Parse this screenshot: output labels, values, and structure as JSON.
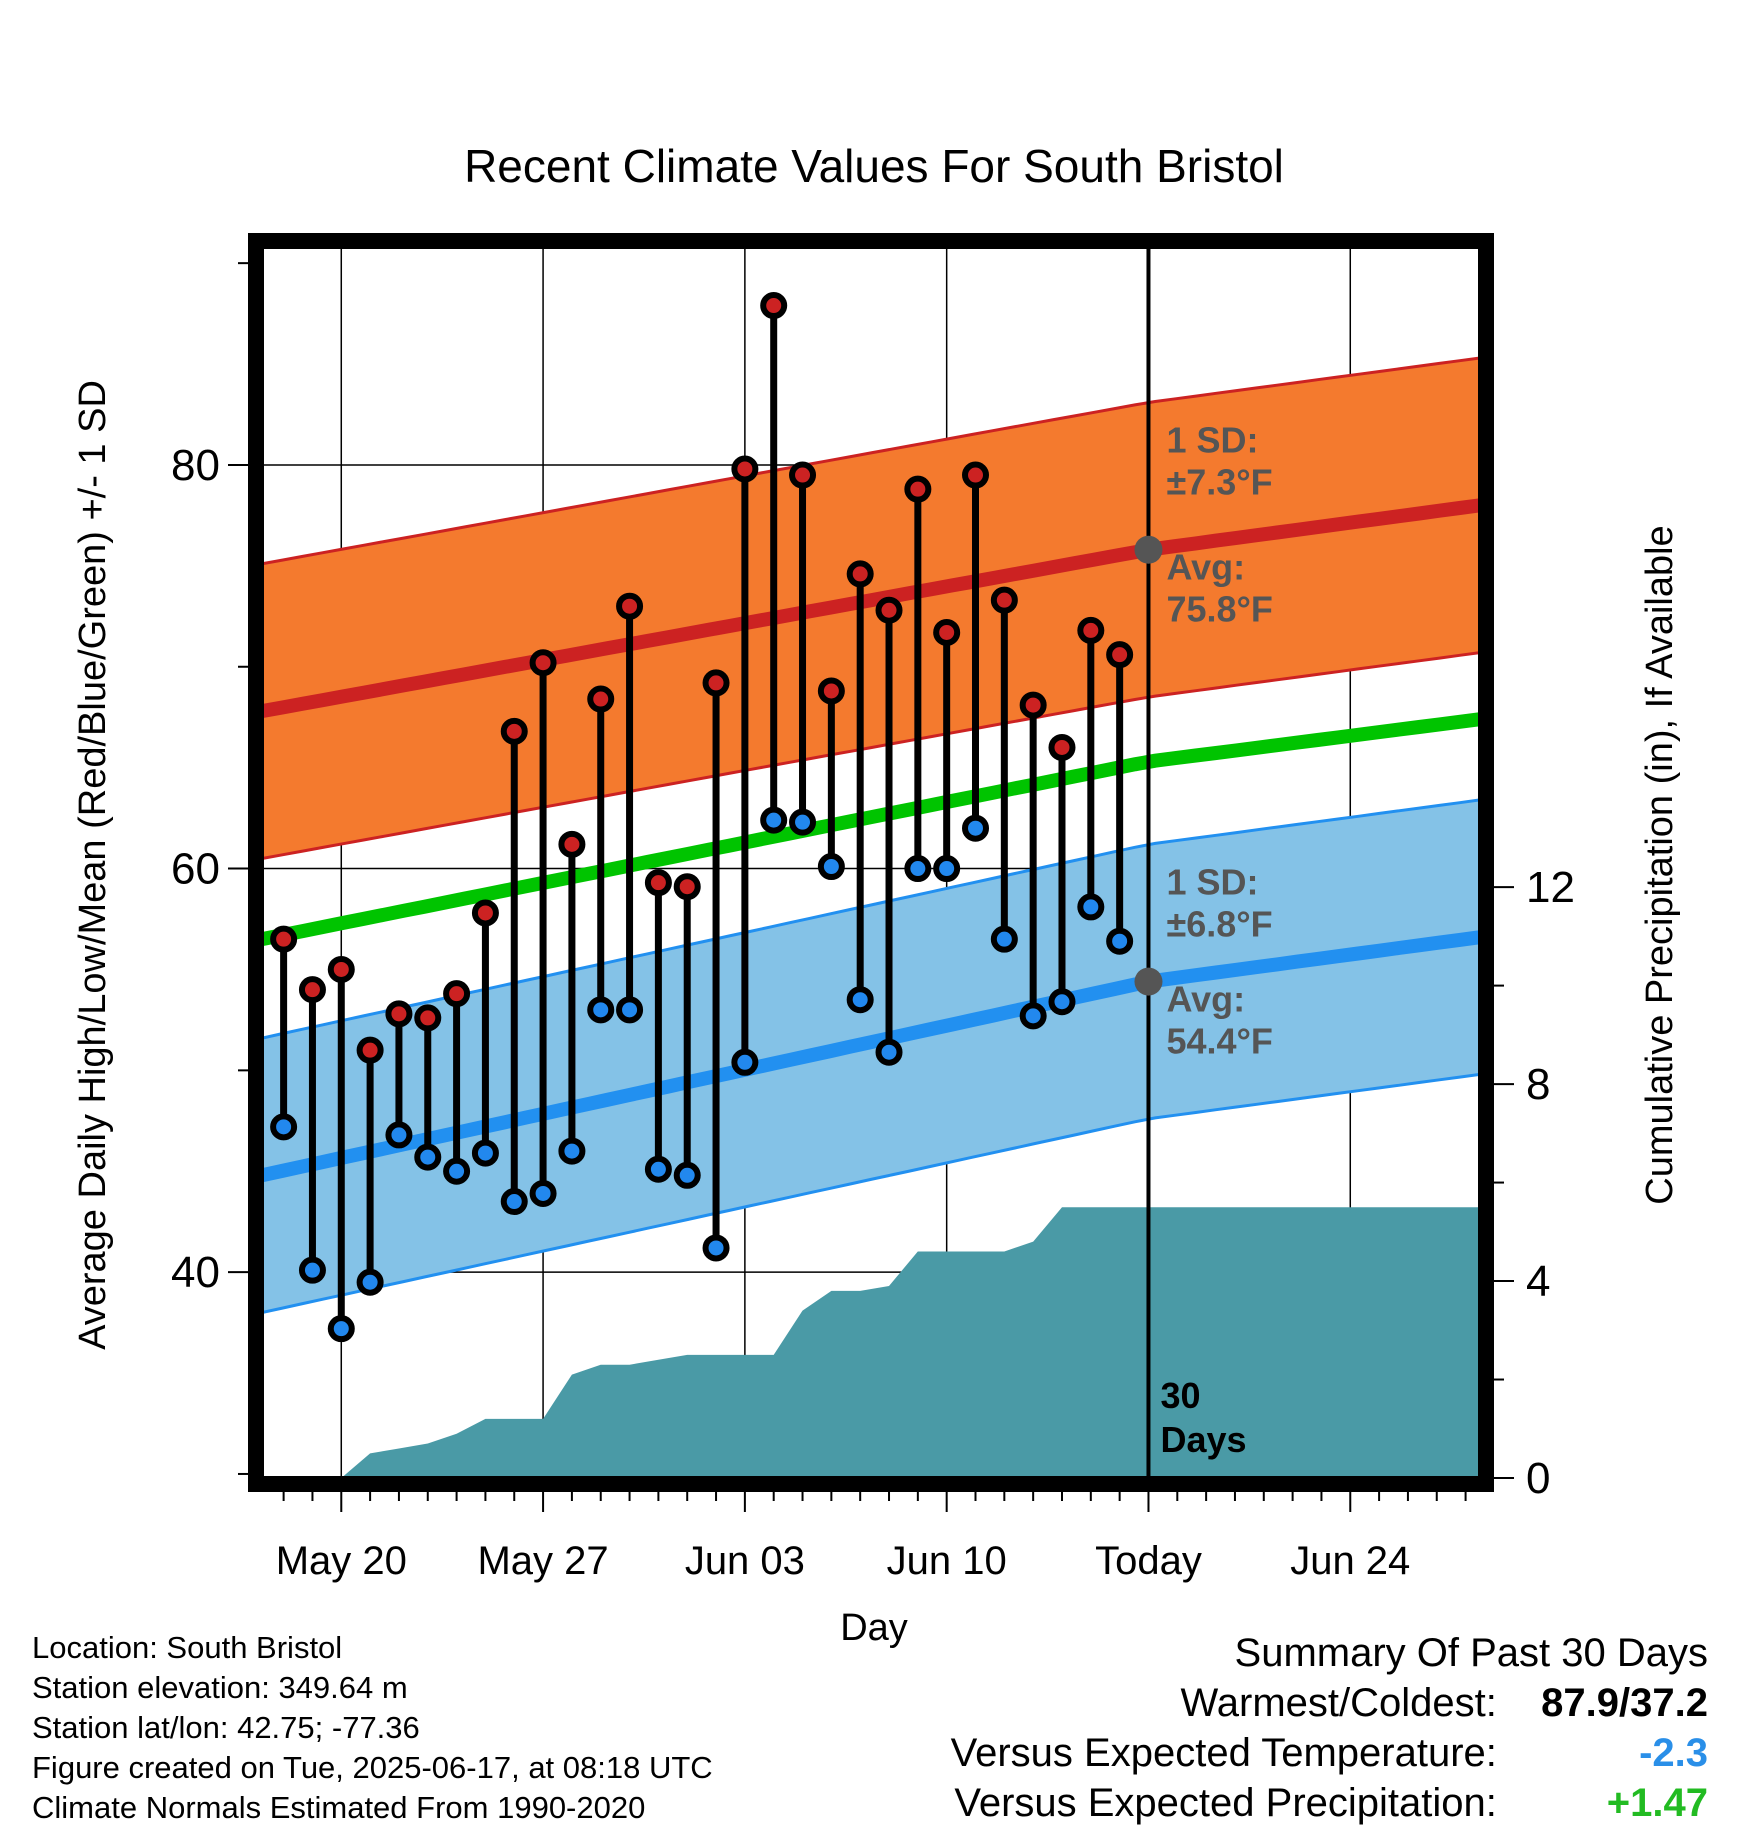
{
  "chart_data": {
    "type": "line",
    "title": "Recent Climate Values For South Bristol",
    "xlabel": "Day",
    "ylabel_left": "Average Daily High/Low/Mean (Red/Blue/Green) +/- 1 SD",
    "ylabel_right": "Cumulative Precipitation (in), If Available",
    "x_ticks": [
      {
        "day": 2,
        "label": "May 20"
      },
      {
        "day": 9,
        "label": "May 27"
      },
      {
        "day": 16,
        "label": "Jun 03"
      },
      {
        "day": 23,
        "label": "Jun 10"
      },
      {
        "day": 30,
        "label": "Today"
      },
      {
        "day": 37,
        "label": "Jun 24"
      }
    ],
    "xlim": [
      -0.75,
      41.5
    ],
    "ylim_left": [
      29.8,
      90.8
    ],
    "yticks_left": [
      40,
      60,
      80
    ],
    "ylim_right": [
      0,
      25
    ],
    "yticks_right": [
      0,
      4,
      8,
      12
    ],
    "grid": true,
    "today_day": 30,
    "days_label": "30 Days",
    "normals": {
      "high_avg": [
        [
          -0.75,
          67.8
        ],
        [
          30,
          75.8
        ],
        [
          41.5,
          78.0
        ]
      ],
      "high_sd": 7.3,
      "mean_avg": [
        [
          -0.75,
          56.5
        ],
        [
          30,
          65.3
        ],
        [
          41.5,
          67.4
        ]
      ],
      "low_avg": [
        [
          -0.75,
          44.8
        ],
        [
          30,
          54.4
        ],
        [
          41.5,
          56.6
        ]
      ],
      "low_sd": 6.8
    },
    "series": [
      {
        "name": "High",
        "color": "#cc2222",
        "values": [
          56.5,
          54.0,
          55.0,
          51.0,
          52.8,
          52.6,
          53.8,
          57.8,
          66.8,
          70.2,
          61.2,
          68.4,
          73.0,
          59.3,
          59.1,
          69.2,
          79.8,
          87.9,
          79.5,
          68.8,
          74.6,
          72.8,
          78.8,
          71.7,
          79.5,
          73.3,
          68.1,
          66.0,
          71.8,
          70.6
        ]
      },
      {
        "name": "Low",
        "color": "#2288ee",
        "values": [
          47.2,
          40.1,
          37.2,
          39.5,
          46.8,
          45.7,
          45.0,
          45.9,
          43.5,
          43.9,
          46.0,
          53.0,
          53.0,
          45.1,
          44.8,
          41.2,
          50.4,
          62.4,
          62.3,
          60.1,
          53.5,
          50.9,
          60.0,
          60.0,
          62.0,
          56.5,
          52.7,
          53.4,
          58.1,
          56.4
        ]
      }
    ],
    "precipitation": {
      "color": "#4a9aa6",
      "days": [
        0,
        1,
        2,
        3,
        4,
        5,
        6,
        7,
        8,
        9,
        10,
        11,
        12,
        13,
        14,
        15,
        16,
        17,
        18,
        19,
        20,
        21,
        22,
        23,
        24,
        25,
        26,
        27,
        28,
        29,
        30,
        41.5
      ],
      "values": [
        0,
        0,
        0,
        0.5,
        0.6,
        0.7,
        0.9,
        1.2,
        1.2,
        1.2,
        2.1,
        2.3,
        2.3,
        2.4,
        2.5,
        2.5,
        2.5,
        2.5,
        3.4,
        3.8,
        3.8,
        3.9,
        4.6,
        4.6,
        4.6,
        4.6,
        4.8,
        5.5,
        5.5,
        5.5,
        5.5,
        5.5
      ]
    },
    "annotations": {
      "high_sd_label": [
        "1 SD:",
        "±7.3°F"
      ],
      "high_avg_label": [
        "Avg:",
        "75.8°F"
      ],
      "low_sd_label": [
        "1 SD:",
        "±6.8°F"
      ],
      "low_avg_label": [
        "Avg:",
        "54.4°F"
      ]
    },
    "colors": {
      "high_band": "#f47a2e",
      "high_line": "#cc2222",
      "mean_line": "#00c400",
      "low_band": "#84c2e7",
      "low_line": "#2290f0",
      "annotation_text": "#555555"
    }
  },
  "info": {
    "location": "Location: South Bristol",
    "elevation": "Station elevation: 349.64 m",
    "latlon": "Station lat/lon: 42.75; -77.36",
    "created": "Figure created on Tue, 2025-06-17, at 08:18 UTC",
    "normals": "Climate Normals Estimated From 1990-2020"
  },
  "summary": {
    "title": "Summary Of Past 30 Days",
    "warmest_coldest_label": "Warmest/Coldest:",
    "warmest_coldest_value": "87.9/37.2",
    "temp_label": "Versus Expected Temperature:",
    "temp_value": "-2.3",
    "temp_color": "#2a8fe8",
    "precip_label": "Versus Expected Precipitation:",
    "precip_value": "+1.47",
    "precip_color": "#22bb22"
  }
}
